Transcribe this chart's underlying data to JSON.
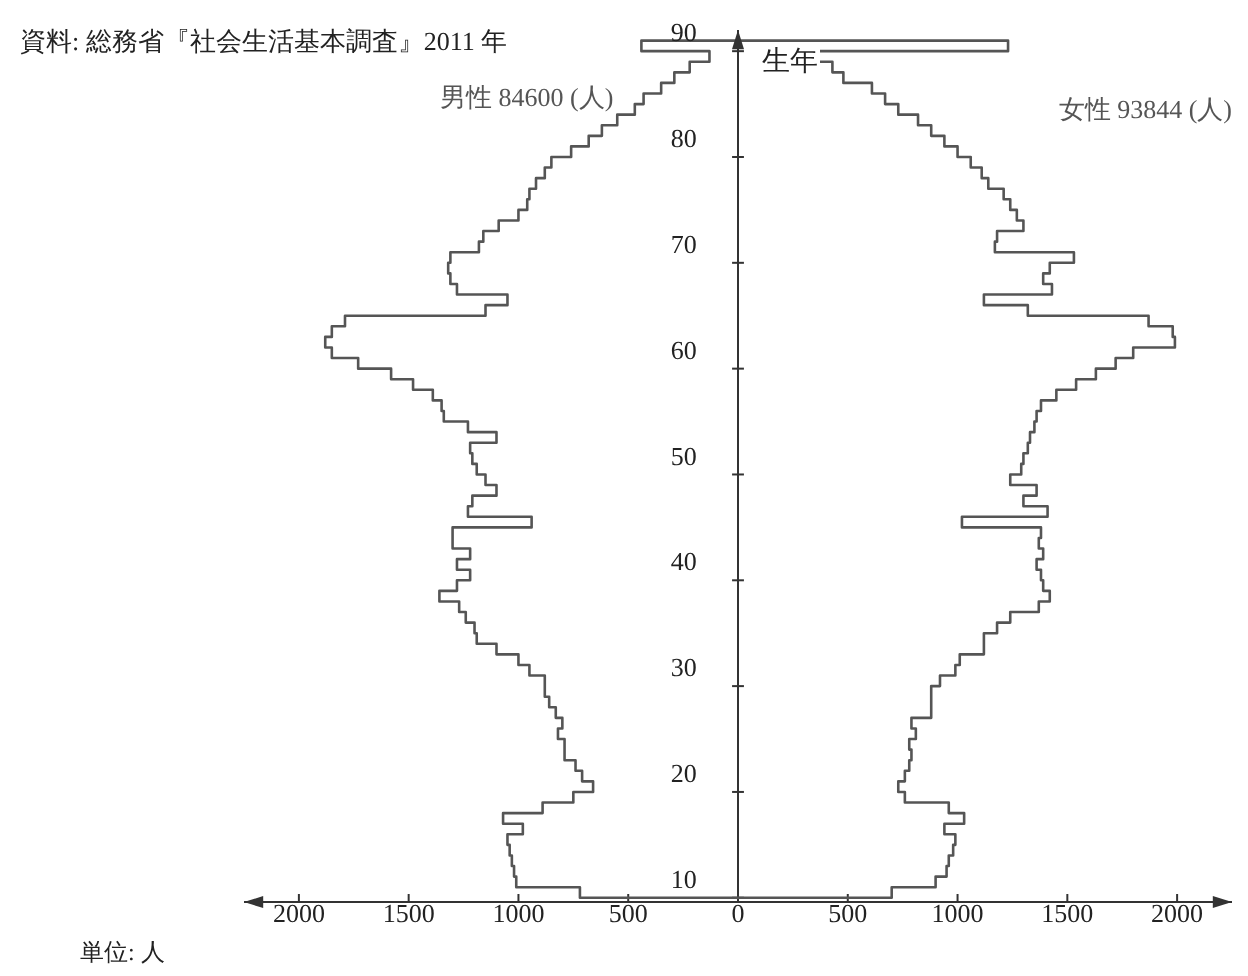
{
  "chart_data": {
    "type": "histogram",
    "orientation": "horizontal",
    "annotations": [
      "資料: 総務省『社会生活基本調査』2011 年",
      "単位: 人"
    ],
    "ylabel": "生年",
    "bins": [
      10,
      11,
      12,
      13,
      14,
      15,
      16,
      17,
      18,
      19,
      20,
      21,
      22,
      23,
      24,
      25,
      26,
      27,
      28,
      29,
      30,
      31,
      32,
      33,
      34,
      35,
      36,
      37,
      38,
      39,
      40,
      41,
      42,
      43,
      44,
      45,
      46,
      47,
      48,
      49,
      50,
      51,
      52,
      53,
      54,
      55,
      56,
      57,
      58,
      59,
      60,
      61,
      62,
      63,
      64,
      65,
      66,
      67,
      68,
      69,
      70,
      71,
      72,
      73,
      74,
      75,
      76,
      77,
      78,
      79,
      80,
      81,
      82,
      83,
      84,
      85,
      86,
      87,
      88,
      89,
      90,
      91
    ],
    "series": [
      {
        "name": "男性 84600 (人)",
        "color": "#555555",
        "values": [
          -720,
          -1010,
          -1020,
          -1030,
          -1040,
          -1050,
          -980,
          -1070,
          -890,
          -750,
          -660,
          -710,
          -740,
          -790,
          -790,
          -820,
          -800,
          -830,
          -860,
          -880,
          -880,
          -950,
          -1000,
          -1100,
          -1190,
          -1200,
          -1240,
          -1270,
          -1360,
          -1280,
          -1220,
          -1280,
          -1220,
          -1300,
          -1300,
          -940,
          -1230,
          -1210,
          -1100,
          -1150,
          -1190,
          -1210,
          -1220,
          -1100,
          -1230,
          -1340,
          -1350,
          -1390,
          -1480,
          -1580,
          -1730,
          -1850,
          -1880,
          -1850,
          -1790,
          -1150,
          -1050,
          -1280,
          -1310,
          -1320,
          -1310,
          -1180,
          -1160,
          -1090,
          -1000,
          -960,
          -950,
          -920,
          -880,
          -850,
          -760,
          -680,
          -620,
          -550,
          -470,
          -430,
          -350,
          -290,
          -220,
          -130,
          -440
        ]
      },
      {
        "name": "女性 93844 (人)",
        "color": "#555555",
        "values": [
          700,
          900,
          950,
          960,
          980,
          990,
          940,
          1030,
          960,
          760,
          730,
          760,
          780,
          790,
          780,
          810,
          790,
          880,
          880,
          880,
          920,
          990,
          1010,
          1120,
          1120,
          1180,
          1240,
          1370,
          1420,
          1390,
          1380,
          1360,
          1390,
          1370,
          1380,
          1020,
          1410,
          1300,
          1360,
          1240,
          1290,
          1300,
          1320,
          1330,
          1350,
          1360,
          1380,
          1450,
          1540,
          1630,
          1720,
          1800,
          1990,
          1980,
          1870,
          1320,
          1120,
          1430,
          1390,
          1420,
          1530,
          1170,
          1180,
          1300,
          1270,
          1240,
          1210,
          1140,
          1110,
          1060,
          1000,
          940,
          880,
          820,
          730,
          670,
          610,
          480,
          430,
          360,
          1230
        ]
      }
    ],
    "xlim": [
      -2250,
      2250
    ],
    "xticks": [
      {
        "value": -2000,
        "label": "2000"
      },
      {
        "value": -1500,
        "label": "1500"
      },
      {
        "value": -1000,
        "label": "1000"
      },
      {
        "value": -500,
        "label": "500"
      },
      0,
      500,
      1000,
      1500,
      2000
    ],
    "ylim": [
      9.6,
      92
    ],
    "yticks": [
      10,
      20,
      30,
      40,
      50,
      60,
      70,
      80,
      90
    ]
  }
}
